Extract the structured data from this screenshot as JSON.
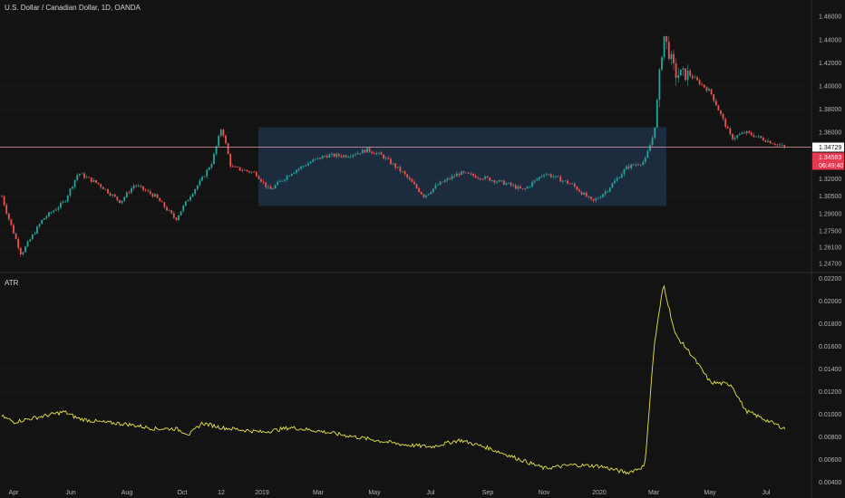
{
  "symbol_title": "U.S. Dollar / Canadian Dollar, 1D, OANDA",
  "indicator_title": "ATR",
  "colors": {
    "background": "#131313",
    "up": "#26a69a",
    "down": "#ef5350",
    "atr_line": "#e7e54a",
    "range_box": "#1f3147",
    "h_line": "#e8a0a8",
    "last_price_tag": "#ffffff",
    "current_tag": "#e53950",
    "grid": "#1e1e1e",
    "divider": "#2a2e39"
  },
  "price_tags": {
    "line_level": "1.34729",
    "current": "1.34583",
    "countdown": "06:49:40"
  },
  "chart_data": [
    {
      "type": "candlestick",
      "title": "U.S. Dollar / Canadian Dollar, 1D, OANDA",
      "x_tick_labels": [
        "Apr",
        "Jun",
        "Aug",
        "Oct",
        "12",
        "2019",
        "Mar",
        "May",
        "Jul",
        "Sep",
        "Nov",
        "2020",
        "Mar",
        "May",
        "Jul"
      ],
      "y_tick_labels": [
        "1.46000",
        "1.44000",
        "1.42000",
        "1.40000",
        "1.38000",
        "1.36000",
        "1.34000",
        "1.32000",
        "1.30500",
        "1.29000",
        "1.27500",
        "1.26100",
        "1.24700"
      ],
      "y_range": [
        1.243,
        1.468
      ],
      "horizontal_line": 1.34729,
      "range_box": {
        "x_start": "Dec 2018",
        "x_end": "Mar 2020",
        "y_low": 1.2965,
        "y_high": 1.3645
      },
      "close_series": {
        "x": [
          "Mar 2018",
          "Apr 2018",
          "Apr 2018",
          "May 2018",
          "Jun 2018",
          "Jun 2018",
          "Jul 2018",
          "Aug 2018",
          "Aug 2018",
          "Sep 2018",
          "Oct 2018",
          "Oct 2018",
          "Nov 2018",
          "Dec 2018",
          "Dec 2018",
          "Dec 2018",
          "Jan 2019",
          "Jan 2019",
          "Feb 2019",
          "Mar 2019",
          "Mar 2019",
          "Apr 2019",
          "May 2019",
          "May 2019",
          "Jun 2019",
          "Jul 2019",
          "Jul 2019",
          "Aug 2019",
          "Sep 2019",
          "Oct 2019",
          "Oct 2019",
          "Nov 2019",
          "Dec 2019",
          "Jan 2020",
          "Jan 2020",
          "Feb 2020",
          "Mar 2020",
          "Mar 2020",
          "Mar 2020",
          "Apr 2020",
          "Apr 2020",
          "May 2020",
          "Jun 2020",
          "Jun 2020",
          "Jul 2020"
        ],
        "values": [
          1.305,
          1.29,
          1.255,
          1.285,
          1.3,
          1.325,
          1.315,
          1.3,
          1.315,
          1.305,
          1.285,
          1.305,
          1.32,
          1.335,
          1.365,
          1.33,
          1.325,
          1.31,
          1.325,
          1.335,
          1.34,
          1.34,
          1.345,
          1.34,
          1.325,
          1.305,
          1.315,
          1.325,
          1.32,
          1.315,
          1.31,
          1.325,
          1.315,
          1.3,
          1.31,
          1.33,
          1.335,
          1.36,
          1.445,
          1.41,
          1.41,
          1.395,
          1.355,
          1.36,
          1.347
        ]
      }
    },
    {
      "type": "line",
      "title": "ATR",
      "y_tick_labels": [
        "0.02200",
        "0.02000",
        "0.01800",
        "0.01600",
        "0.01400",
        "0.01200",
        "0.01000",
        "0.00800",
        "0.00600",
        "0.00400"
      ],
      "y_range": [
        0.0037,
        0.0221
      ],
      "series": [
        {
          "x": [
            "Mar 2018",
            "Apr 2018",
            "May 2018",
            "Jun 2018",
            "Jun 2018",
            "Jul 2018",
            "Aug 2018",
            "Sep 2018",
            "Oct 2018",
            "Oct 2018",
            "Nov 2018",
            "Dec 2018",
            "Jan 2019",
            "Feb 2019",
            "Mar 2019",
            "Apr 2019",
            "May 2019",
            "Jun 2019",
            "Jul 2019",
            "Aug 2019",
            "Sep 2019",
            "Oct 2019",
            "Nov 2019",
            "Dec 2019",
            "Jan 2020",
            "Feb 2020",
            "Mar 2020",
            "Mar 2020",
            "Mar 2020",
            "Apr 2020",
            "Apr 2020",
            "May 2020",
            "Jun 2020",
            "Jun 2020",
            "Jul 2020"
          ],
          "values": [
            0.0098,
            0.0093,
            0.0098,
            0.0102,
            0.0096,
            0.0093,
            0.0091,
            0.0087,
            0.0087,
            0.0082,
            0.0092,
            0.0088,
            0.0084,
            0.0088,
            0.0085,
            0.0081,
            0.0077,
            0.0073,
            0.0071,
            0.0077,
            0.007,
            0.0061,
            0.0052,
            0.0055,
            0.0054,
            0.0048,
            0.0054,
            0.016,
            0.0215,
            0.017,
            0.0155,
            0.0128,
            0.0126,
            0.0103,
            0.0087
          ]
        }
      ]
    }
  ]
}
